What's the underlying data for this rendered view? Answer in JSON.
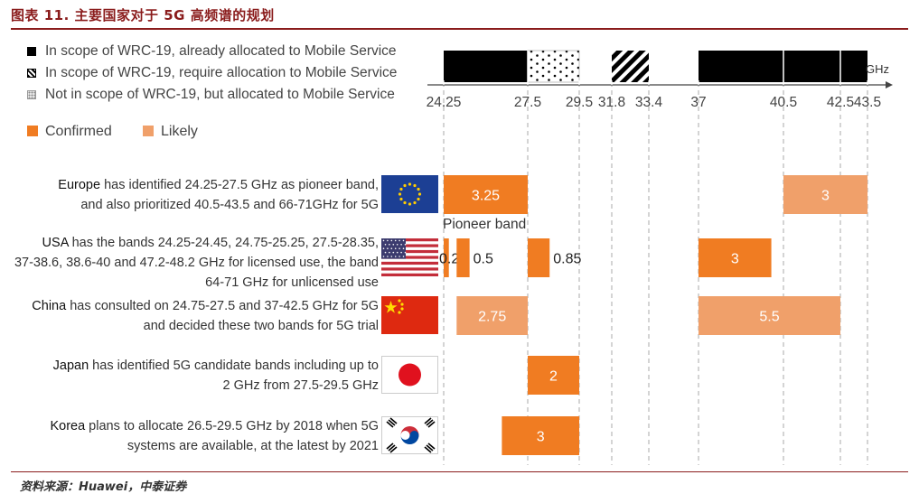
{
  "title": "图表 11. 主要国家对于 5G 高频谱的规划",
  "source": "资料来源：Huawei，中泰证券",
  "legend": {
    "scope": [
      {
        "label": "In scope of WRC-19, already allocated to Mobile Service",
        "pattern": "solid"
      },
      {
        "label": "In scope of WRC-19, require allocation to Mobile Service",
        "pattern": "hatch"
      },
      {
        "label": "Not in scope of WRC-19, but allocated to Mobile Service",
        "pattern": "dots"
      }
    ],
    "status": [
      {
        "label": "Confirmed",
        "color": "#f07c22"
      },
      {
        "label": "Likely",
        "color": "#f0a06a"
      }
    ]
  },
  "colors": {
    "confirmed": "#f07c22",
    "likely": "#f0a06a",
    "title": "#8a1c1c"
  },
  "rows": [
    {
      "country": "Europe",
      "text1": " has identified 24.25-27.5 GHz as pioneer band,",
      "text2": "and also prioritized 40.5-43.5 and 66-71GHz for 5G",
      "text3": "",
      "flag": "eu-flag"
    },
    {
      "country": "USA",
      "text1": " has the bands 24.25-24.45, 24.75-25.25, 27.5-28.35,",
      "text2": "37-38.6, 38.6-40 and 47.2-48.2 GHz for licensed use, the band",
      "text3": "64-71 GHz for unlicensed use",
      "flag": "us-flag"
    },
    {
      "country": "China",
      "text1": " has consulted on 24.75-27.5 and 37-42.5 GHz for 5G",
      "text2": "and decided these two bands for 5G trial",
      "text3": "",
      "flag": "cn-flag"
    },
    {
      "country": "Japan",
      "text1": " has identified 5G candidate bands including up to",
      "text2": "2 GHz from 27.5-29.5 GHz",
      "text3": "",
      "flag": "jp-flag"
    },
    {
      "country": "Korea",
      "text1": " plans to allocate 26.5-29.5 GHz by 2018 when 5G",
      "text2": "systems are available, at the latest by 2021",
      "text3": "",
      "flag": "kr-flag"
    }
  ],
  "chart_data": {
    "type": "bar",
    "xlabel": "GHz",
    "ticks": [
      "24.25",
      "27.5",
      "29.5",
      "31.8",
      "33.4",
      "37",
      "40.5",
      "42.5",
      "43.5"
    ],
    "tick_values": [
      24.25,
      27.5,
      29.5,
      31.8,
      33.4,
      37,
      40.5,
      42.5,
      43.5
    ],
    "scope_bands": [
      {
        "from": 24.25,
        "to": 27.5,
        "pattern": "solid"
      },
      {
        "from": 27.5,
        "to": 29.5,
        "pattern": "dots"
      },
      {
        "from": 31.8,
        "to": 33.4,
        "pattern": "hatch"
      },
      {
        "from": 37,
        "to": 43.5,
        "pattern": "solid"
      }
    ],
    "bars": [
      {
        "row": 0,
        "from": 24.25,
        "to": 27.5,
        "label": "3.25",
        "status": "Confirmed"
      },
      {
        "row": 0,
        "from": 40.5,
        "to": 43.5,
        "label": "3",
        "status": "Likely"
      },
      {
        "row": 1,
        "from": 24.25,
        "to": 24.45,
        "label": "0.2",
        "status": "Confirmed"
      },
      {
        "row": 1,
        "from": 24.75,
        "to": 25.25,
        "label": "0.5",
        "status": "Confirmed"
      },
      {
        "row": 1,
        "from": 27.5,
        "to": 28.35,
        "label": "0.85",
        "status": "Confirmed"
      },
      {
        "row": 1,
        "from": 37,
        "to": 40,
        "label": "3",
        "status": "Confirmed"
      },
      {
        "row": 2,
        "from": 24.75,
        "to": 27.5,
        "label": "2.75",
        "status": "Likely"
      },
      {
        "row": 2,
        "from": 37,
        "to": 42.5,
        "label": "5.5",
        "status": "Likely"
      },
      {
        "row": 3,
        "from": 27.5,
        "to": 29.5,
        "label": "2",
        "status": "Confirmed"
      },
      {
        "row": 4,
        "from": 26.5,
        "to": 29.5,
        "label": "3",
        "status": "Confirmed"
      }
    ],
    "annotations": [
      {
        "text": "Pioneer band",
        "row": 0
      }
    ]
  }
}
